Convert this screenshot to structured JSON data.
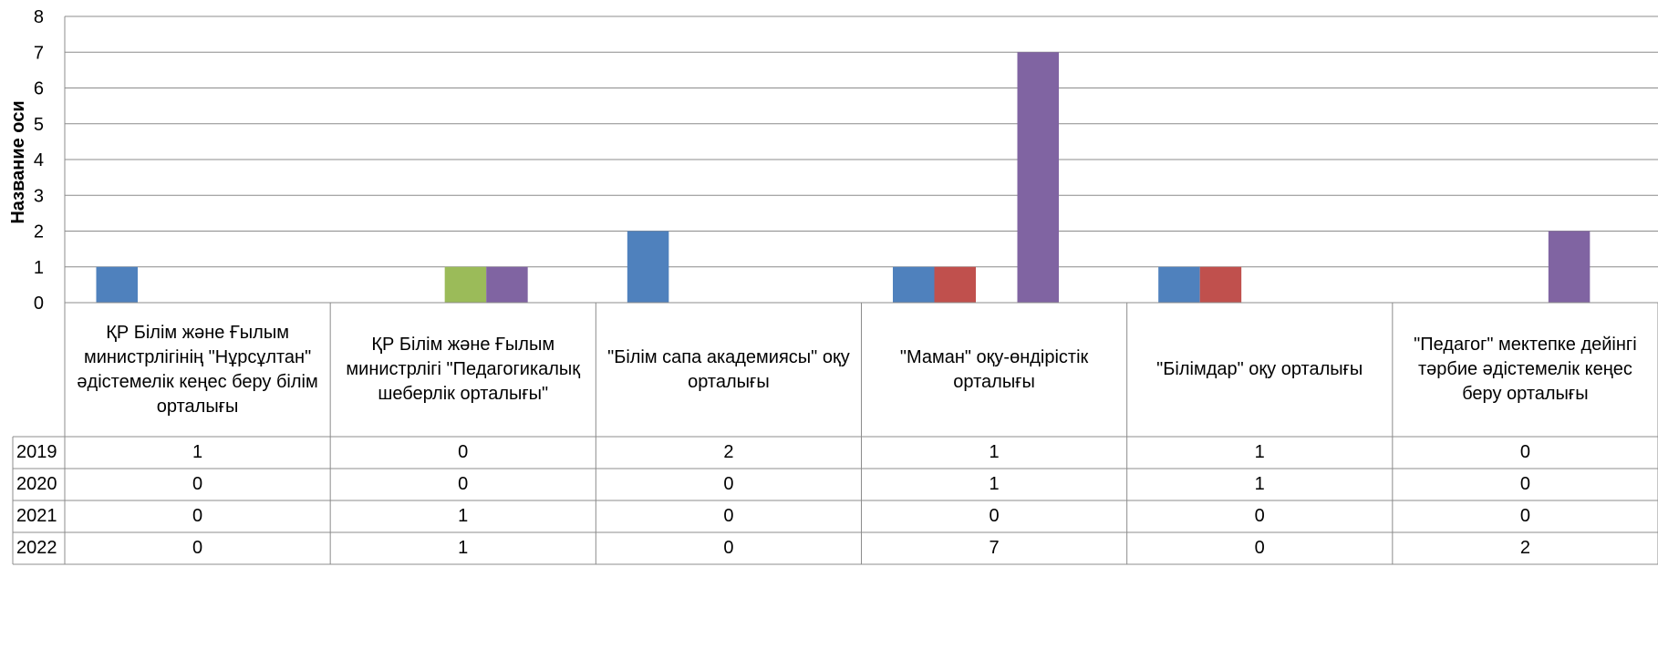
{
  "chart_data": {
    "type": "bar",
    "title": "",
    "xlabel": "",
    "ylabel": "Название оси",
    "ylim": [
      0,
      8
    ],
    "yticks": [
      "0",
      "1",
      "2",
      "3",
      "4",
      "5",
      "6",
      "7",
      "8"
    ],
    "grid": true,
    "legend": "data-table-rows",
    "categories": [
      "ҚР Білім және Ғылым министрлігінің \"Нұрсұлтан\" әдістемелік кеңес беру білім орталығы",
      "ҚР Білім және Ғылым министрлігі \"Педагогикалық шеберлік орталығы\"",
      "\"Білім сапа академиясы\" оқу орталығы",
      "\"Маман\" оқу-өндірістік орталығы",
      "\"Білімдар\" оқу орталығы",
      "\"Педагог\" мектепке дейінгі тәрбие әдістемелік кеңес беру орталығы"
    ],
    "series": [
      {
        "name": "2019",
        "color": "#4F81BD",
        "values": [
          1,
          0,
          2,
          1,
          1,
          0
        ]
      },
      {
        "name": "2020",
        "color": "#C0504D",
        "values": [
          0,
          0,
          0,
          1,
          1,
          0
        ]
      },
      {
        "name": "2021",
        "color": "#9BBB59",
        "values": [
          0,
          1,
          0,
          0,
          0,
          0
        ]
      },
      {
        "name": "2022",
        "color": "#8064A2",
        "values": [
          0,
          1,
          0,
          7,
          0,
          2
        ]
      }
    ]
  }
}
